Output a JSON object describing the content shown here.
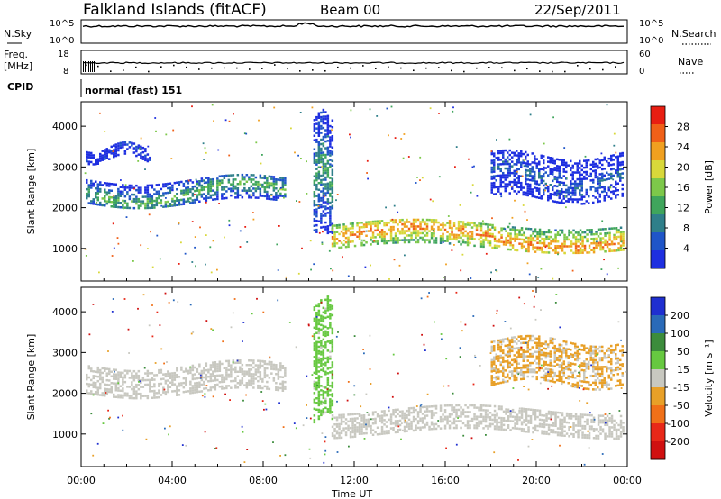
{
  "header": {
    "station": "Falkland Islands (fitACF)",
    "beam": "Beam 00",
    "date": "22/Sep/2011"
  },
  "strips": {
    "nsky": {
      "label": "N.Sky",
      "ticks_left": [
        "10^5",
        "10^0"
      ],
      "ticks_right": [
        "10^5",
        "10^0"
      ],
      "right_label": "N.Search"
    },
    "freq": {
      "label_line1": "Freq.",
      "label_line2": "[MHz]",
      "ticks_left": [
        "18",
        "8"
      ],
      "ticks_right": [
        "60",
        "0"
      ],
      "right_label": "Nave"
    },
    "cpid": {
      "label": "CPID",
      "value": "normal (fast) 151"
    }
  },
  "chart_data": [
    {
      "type": "heatmap",
      "name": "Power",
      "ylabel": "Slant Range [km]",
      "xlabel": "Time UT",
      "x_range_hours": [
        0,
        24
      ],
      "ylim": [
        200,
        4600
      ],
      "y_ticks": [
        1000,
        2000,
        3000,
        4000
      ],
      "x_ticks": [
        "00:00",
        "04:00",
        "08:00",
        "12:00",
        "16:00",
        "20:00",
        "00:00"
      ],
      "colorbar": {
        "label": "Power [dB]",
        "tick_labels": [
          "4",
          "8",
          "12",
          "16",
          "20",
          "24",
          "28"
        ],
        "colors": [
          "#1e2fe0",
          "#1f55c8",
          "#2f7f8a",
          "#3fa55c",
          "#7dc84a",
          "#d8d83a",
          "#f0a020",
          "#f06018",
          "#e81e12"
        ]
      },
      "echo_bands": [
        {
          "t_start": 0.2,
          "t_end": 9.0,
          "range_start_km": 2100,
          "range_end_km": 2700,
          "power_db": 14
        },
        {
          "t_start": 0.2,
          "t_end": 3.0,
          "range_start_km": 3200,
          "range_end_km": 3500,
          "power_db": 6
        },
        {
          "t_start": 10.2,
          "t_end": 11.0,
          "range_start_km": 1400,
          "range_end_km": 4300,
          "power_db": 12
        },
        {
          "t_start": 11.0,
          "t_end": 23.8,
          "range_start_km": 1000,
          "range_end_km": 1600,
          "power_db": 24
        },
        {
          "t_start": 18.0,
          "t_end": 23.8,
          "range_start_km": 2200,
          "range_end_km": 3300,
          "power_db": 8
        }
      ]
    },
    {
      "type": "heatmap",
      "name": "Velocity",
      "ylabel": "Slant Range [km]",
      "xlabel": "Time UT",
      "x_range_hours": [
        0,
        24
      ],
      "ylim": [
        200,
        4600
      ],
      "y_ticks": [
        1000,
        2000,
        3000,
        4000
      ],
      "x_ticks": [
        "00:00",
        "04:00",
        "08:00",
        "12:00",
        "16:00",
        "20:00",
        "00:00"
      ],
      "colorbar": {
        "label": "Velocity [m s⁻¹]",
        "tick_labels": [
          "200",
          "100",
          "50",
          "15",
          "-15",
          "-50",
          "-100",
          "-200"
        ],
        "colors": [
          "#1f2fd0",
          "#2a6ab8",
          "#3c8c3c",
          "#66c840",
          "#c8c8c0",
          "#e8a028",
          "#f07018",
          "#e82818",
          "#d01010"
        ]
      },
      "echo_bands": [
        {
          "t_start": 0.2,
          "t_end": 9.0,
          "range_start_km": 2000,
          "range_end_km": 2700,
          "velocity": 0
        },
        {
          "t_start": 10.2,
          "t_end": 11.0,
          "range_start_km": 1400,
          "range_end_km": 4300,
          "velocity": 40
        },
        {
          "t_start": 11.0,
          "t_end": 23.8,
          "range_start_km": 1000,
          "range_end_km": 1600,
          "velocity": 0
        },
        {
          "t_start": 18.0,
          "t_end": 23.8,
          "range_start_km": 2200,
          "range_end_km": 3300,
          "velocity": -30
        }
      ]
    }
  ]
}
